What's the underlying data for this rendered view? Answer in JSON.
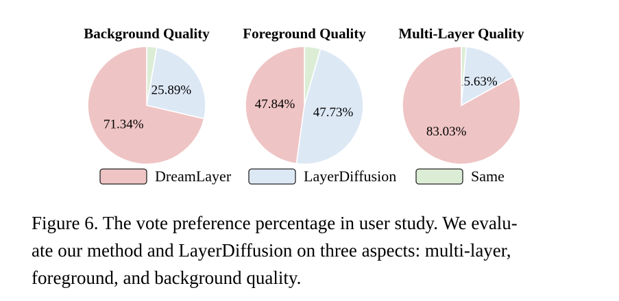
{
  "colors": {
    "DreamLayer": "#efc4c4",
    "LayerDiffusion": "#dde8f5",
    "Same": "#dcedd6"
  },
  "chart_data": [
    {
      "type": "pie",
      "title": "Background Quality",
      "slices": [
        {
          "name": "Same",
          "value": 2.77
        },
        {
          "name": "LayerDiffusion",
          "value": 25.89,
          "label": "25.89%"
        },
        {
          "name": "DreamLayer",
          "value": 71.34,
          "label": "71.34%"
        }
      ]
    },
    {
      "type": "pie",
      "title": "Foreground Quality",
      "slices": [
        {
          "name": "Same",
          "value": 4.43
        },
        {
          "name": "LayerDiffusion",
          "value": 47.73,
          "label": "47.73%"
        },
        {
          "name": "DreamLayer",
          "value": 47.84,
          "label": "47.84%"
        }
      ]
    },
    {
      "type": "pie",
      "title": "Multi-Layer Quality",
      "slices": [
        {
          "name": "Same",
          "value": 1.34
        },
        {
          "name": "LayerDiffusion",
          "value": 15.63,
          "label": "15.63%"
        },
        {
          "name": "DreamLayer",
          "value": 83.03,
          "label": "83.03%"
        }
      ]
    }
  ],
  "legend": [
    "DreamLayer",
    "LayerDiffusion",
    "Same"
  ],
  "caption": {
    "line1": "Figure 6. The vote preference percentage in user study. We evalu-",
    "line2": "ate our method and LayerDiffusion on three aspects: multi-layer,",
    "line3": "foreground, and background quality."
  }
}
